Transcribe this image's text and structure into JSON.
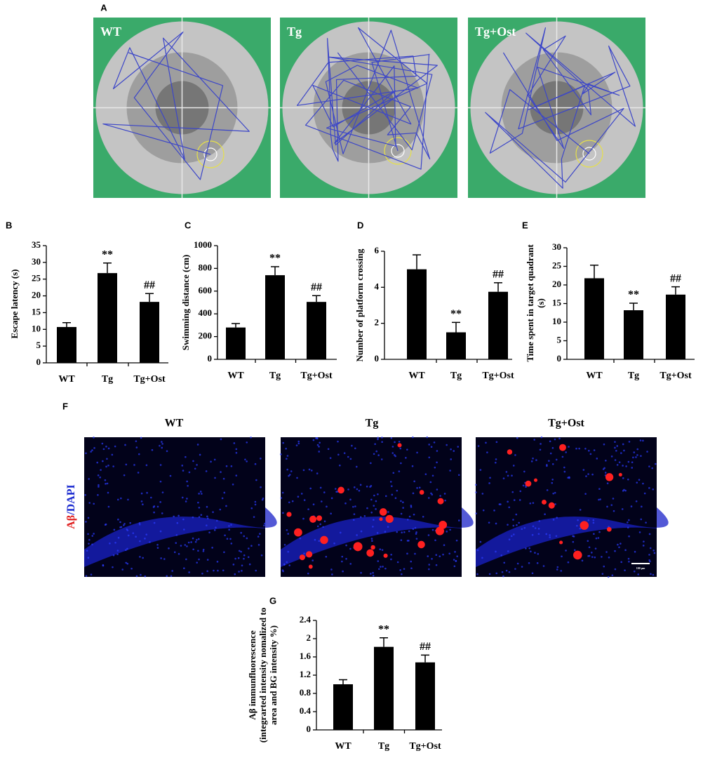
{
  "panel_a": {
    "label": "A",
    "images": [
      "WT",
      "Tg",
      "Tg+Ost"
    ]
  },
  "panel_f": {
    "label": "F",
    "titles": [
      "WT",
      "Tg",
      "Tg+Ost"
    ],
    "stain": [
      "Aβ",
      "/DAPI"
    ],
    "scale_bar": "100 μm"
  },
  "chart_data": [
    {
      "type": "bar",
      "label": "B",
      "ylabel": [
        "Escape latency (s)"
      ],
      "categories": [
        "WT",
        "Tg",
        "Tg+Ost"
      ],
      "values": [
        10.7,
        26.8,
        18.2
      ],
      "errors": [
        1.3,
        3.0,
        2.5
      ],
      "significance": [
        null,
        "**",
        "##"
      ],
      "color": "#000000",
      "ylim": [
        0,
        35
      ],
      "yticks": [
        0,
        5,
        10,
        15,
        20,
        25,
        30,
        35
      ]
    },
    {
      "type": "bar",
      "label": "C",
      "ylabel": [
        "Swimming distance (cm)"
      ],
      "categories": [
        "WT",
        "Tg",
        "Tg+Ost"
      ],
      "values": [
        280,
        740,
        505
      ],
      "errors": [
        35,
        75,
        55
      ],
      "significance": [
        null,
        "**",
        "##"
      ],
      "color": "#000000",
      "ylim": [
        0,
        1000
      ],
      "yticks": [
        0,
        200,
        400,
        600,
        800,
        1000
      ]
    },
    {
      "type": "bar",
      "label": "D",
      "ylabel": [
        "Number of platform crossing"
      ],
      "categories": [
        "WT",
        "Tg",
        "Tg+Ost"
      ],
      "values": [
        5.0,
        1.5,
        3.75
      ],
      "errors": [
        0.8,
        0.55,
        0.5
      ],
      "significance": [
        null,
        "**",
        "##"
      ],
      "color": "#000000",
      "ylim": [
        0,
        6
      ],
      "yticks": [
        0,
        2,
        4,
        6
      ]
    },
    {
      "type": "bar",
      "label": "E",
      "ylabel": [
        "Time spent in target quadrant",
        "(s)"
      ],
      "categories": [
        "WT",
        "Tg",
        "Tg+Ost"
      ],
      "values": [
        21.8,
        13.2,
        17.4
      ],
      "errors": [
        3.5,
        1.9,
        2.1
      ],
      "significance": [
        null,
        "**",
        "##"
      ],
      "color": "#000000",
      "ylim": [
        0,
        30
      ],
      "yticks": [
        0,
        5,
        10,
        15,
        20,
        25,
        30
      ]
    },
    {
      "type": "bar",
      "label": "G",
      "ylabel": [
        "Aβ immunfluorescence",
        "(integrarted intensity nomalized to",
        "area and BG intensity %)"
      ],
      "categories": [
        "WT",
        "Tg",
        "Tg+Ost"
      ],
      "values": [
        1.0,
        1.82,
        1.48
      ],
      "errors": [
        0.1,
        0.2,
        0.16
      ],
      "significance": [
        null,
        "**",
        "##"
      ],
      "color": "#000000",
      "ylim": [
        0,
        2.4
      ],
      "yticks": [
        0,
        0.4,
        0.8,
        1.2,
        1.6,
        2,
        2.4
      ]
    }
  ]
}
